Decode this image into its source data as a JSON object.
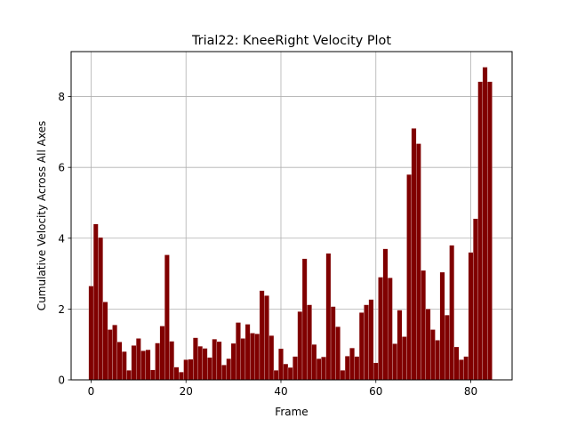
{
  "chart_data": {
    "type": "bar",
    "title": "Trial22: KneeRight Velocity Plot",
    "xlabel": "Frame",
    "ylabel": "Cumulative Velocity Across All Axes",
    "xlim": [
      -4.2,
      88.7
    ],
    "ylim": [
      0,
      9.27
    ],
    "xticks": [
      0,
      20,
      40,
      60,
      80
    ],
    "yticks": [
      0,
      2,
      4,
      6,
      8
    ],
    "grid": true,
    "bar_color": "#800000",
    "x": [
      0,
      1,
      2,
      3,
      4,
      5,
      6,
      7,
      8,
      9,
      10,
      11,
      12,
      13,
      14,
      15,
      16,
      17,
      18,
      19,
      20,
      21,
      22,
      23,
      24,
      25,
      26,
      27,
      28,
      29,
      30,
      31,
      32,
      33,
      34,
      35,
      36,
      37,
      38,
      39,
      40,
      41,
      42,
      43,
      44,
      45,
      46,
      47,
      48,
      49,
      50,
      51,
      52,
      53,
      54,
      55,
      56,
      57,
      58,
      59,
      60,
      61,
      62,
      63,
      64,
      65,
      66,
      67,
      68,
      69,
      70,
      71,
      72,
      73,
      74,
      75,
      76,
      77,
      78,
      79,
      80,
      81,
      82,
      83,
      84
    ],
    "values": [
      2.65,
      4.4,
      4.02,
      2.2,
      1.42,
      1.55,
      1.07,
      0.8,
      0.27,
      0.97,
      1.17,
      0.82,
      0.85,
      0.28,
      1.04,
      1.52,
      3.53,
      1.09,
      0.36,
      0.22,
      0.57,
      0.58,
      1.19,
      0.95,
      0.89,
      0.63,
      1.15,
      1.08,
      0.42,
      0.6,
      1.03,
      1.62,
      1.17,
      1.57,
      1.32,
      1.3,
      2.52,
      2.38,
      1.25,
      0.27,
      0.88,
      0.45,
      0.35,
      0.66,
      1.93,
      3.42,
      2.12,
      1.0,
      0.6,
      0.65,
      3.57,
      2.07,
      1.5,
      0.27,
      0.67,
      0.9,
      0.66,
      1.9,
      2.12,
      2.27,
      0.48,
      2.9,
      3.7,
      2.88,
      1.02,
      1.97,
      1.22,
      5.8,
      7.1,
      6.67,
      3.09,
      2.0,
      1.42,
      1.12,
      3.04,
      1.83,
      3.8,
      0.93,
      0.57,
      0.66,
      3.6,
      4.55,
      8.42,
      8.83,
      8.42
    ]
  }
}
